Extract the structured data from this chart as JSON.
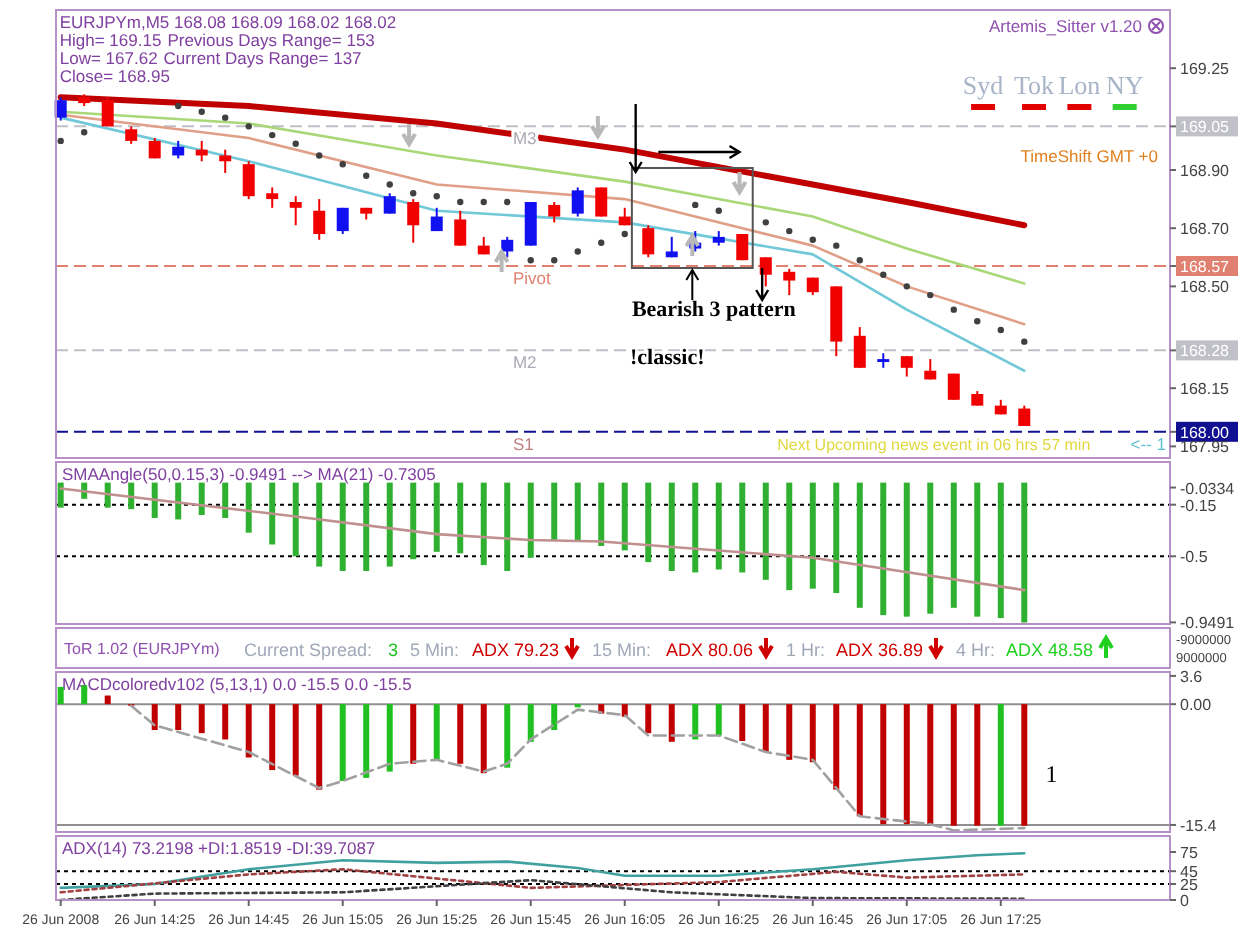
{
  "chart_data": [
    {
      "type": "candlestick",
      "xlim": [
        "2008-06-26T14:04",
        "2008-06-26T18:01"
      ],
      "ylim": [
        167.91,
        169.45
      ],
      "tick_labels": "y",
      "x": [
        "2008-06-26T14:05",
        "2008-06-26T14:10",
        "2008-06-26T14:15",
        "2008-06-26T14:20",
        "2008-06-26T14:25",
        "2008-06-26T14:30",
        "2008-06-26T14:35",
        "2008-06-26T14:40",
        "2008-06-26T14:45",
        "2008-06-26T14:50",
        "2008-06-26T14:55",
        "2008-06-26T15:00",
        "2008-06-26T15:05",
        "2008-06-26T15:10",
        "2008-06-26T15:15",
        "2008-06-26T15:20",
        "2008-06-26T15:25",
        "2008-06-26T15:30",
        "2008-06-26T15:35",
        "2008-06-26T15:40",
        "2008-06-26T15:45",
        "2008-06-26T15:50",
        "2008-06-26T15:55",
        "2008-06-26T16:00",
        "2008-06-26T16:05",
        "2008-06-26T16:10",
        "2008-06-26T16:15",
        "2008-06-26T16:20",
        "2008-06-26T16:25",
        "2008-06-26T16:30",
        "2008-06-26T16:35",
        "2008-06-26T16:40",
        "2008-06-26T16:45",
        "2008-06-26T16:50",
        "2008-06-26T16:55",
        "2008-06-26T17:00",
        "2008-06-26T17:05",
        "2008-06-26T17:10",
        "2008-06-26T17:15",
        "2008-06-26T17:20",
        "2008-06-26T17:25",
        "2008-06-26T17:30"
      ],
      "yticks": [
        169.25,
        {
          "value": 169.05,
          "label": "169.05"
        },
        {
          "value": 168.9,
          "label": "168.90"
        },
        {
          "value": 168.7,
          "label": "168.70"
        },
        168.57,
        {
          "value": 168.5,
          "label": "168.50"
        },
        168.28,
        168.15,
        {
          "value": 168.0,
          "label": "168.00"
        },
        167.95
      ],
      "ohlc": [
        [
          169.08,
          169.15,
          169.07,
          169.14
        ],
        [
          169.15,
          169.16,
          169.12,
          169.13
        ],
        [
          169.14,
          169.15,
          169.05,
          169.05
        ],
        [
          169.04,
          169.05,
          168.99,
          169.0
        ],
        [
          169.0,
          169.01,
          168.94,
          168.94
        ],
        [
          168.95,
          169.0,
          168.94,
          168.98
        ],
        [
          168.97,
          169.0,
          168.93,
          168.95
        ],
        [
          168.95,
          168.97,
          168.89,
          168.93
        ],
        [
          168.92,
          168.93,
          168.8,
          168.81
        ],
        [
          168.82,
          168.84,
          168.77,
          168.8
        ],
        [
          168.79,
          168.81,
          168.71,
          168.77
        ],
        [
          168.76,
          168.8,
          168.66,
          168.68
        ],
        [
          168.69,
          168.77,
          168.68,
          168.77
        ],
        [
          168.77,
          168.77,
          168.73,
          168.75
        ],
        [
          168.75,
          168.82,
          168.75,
          168.81
        ],
        [
          168.79,
          168.8,
          168.65,
          168.71
        ],
        [
          168.69,
          168.77,
          168.69,
          168.74
        ],
        [
          168.73,
          168.76,
          168.64,
          168.64
        ],
        [
          168.64,
          168.67,
          168.61,
          168.61
        ],
        [
          168.62,
          168.67,
          168.6,
          168.66
        ],
        [
          168.64,
          168.79,
          168.64,
          168.79
        ],
        [
          168.78,
          168.79,
          168.72,
          168.74
        ],
        [
          168.75,
          168.84,
          168.74,
          168.83
        ],
        [
          168.84,
          168.84,
          168.74,
          168.74
        ],
        [
          168.74,
          168.77,
          168.71,
          168.71
        ],
        [
          168.7,
          168.71,
          168.6,
          168.61
        ],
        [
          168.6,
          168.67,
          168.6,
          168.62
        ],
        [
          168.63,
          168.69,
          168.62,
          168.65
        ],
        [
          168.65,
          168.69,
          168.64,
          168.67
        ],
        [
          168.68,
          168.68,
          168.59,
          168.59
        ],
        [
          168.6,
          168.6,
          168.5,
          168.54
        ],
        [
          168.55,
          168.56,
          168.47,
          168.52
        ],
        [
          168.53,
          168.53,
          168.47,
          168.48
        ],
        [
          168.5,
          168.5,
          168.26,
          168.31
        ],
        [
          168.33,
          168.36,
          168.22,
          168.22
        ],
        [
          168.24,
          168.27,
          168.22,
          168.25
        ],
        [
          168.26,
          168.26,
          168.19,
          168.22
        ],
        [
          168.21,
          168.25,
          168.18,
          168.18
        ],
        [
          168.2,
          168.2,
          168.11,
          168.11
        ],
        [
          168.13,
          168.14,
          168.09,
          168.09
        ],
        [
          168.09,
          168.11,
          168.06,
          168.06
        ],
        [
          168.08,
          168.09,
          168.02,
          168.02
        ]
      ],
      "colors": [
        "#1010f0",
        "#f00000",
        "#f00000",
        "#f00000",
        "#f00000",
        "#1010f0",
        "#f00000",
        "#f00000",
        "#f00000",
        "#f00000",
        "#f00000",
        "#f00000",
        "#1010f0",
        "#f00000",
        "#1010f0",
        "#f00000",
        "#1010f0",
        "#f00000",
        "#f00000",
        "#1010f0",
        "#1010f0",
        "#f00000",
        "#1010f0",
        "#f00000",
        "#f00000",
        "#f00000",
        "#1010f0",
        "#1010f0",
        "#1010f0",
        "#f00000",
        "#f00000",
        "#f00000",
        "#f00000",
        "#f00000",
        "#f00000",
        "#1010f0",
        "#f00000",
        "#f00000",
        "#f00000",
        "#f00000",
        "#f00000",
        "#f00000"
      ],
      "series": [
        {
          "type": "line",
          "color": "#c00000",
          "x": [
            "2008-06-26T14:05",
            "2008-06-26T14:45",
            "2008-06-26T15:25",
            "2008-06-26T16:05",
            "2008-06-26T16:45",
            "2008-06-26T17:05",
            "2008-06-26T17:30"
          ],
          "values": [
            169.15,
            169.12,
            169.06,
            168.97,
            168.85,
            168.79,
            168.71
          ]
        },
        {
          "type": "line",
          "color": "#a8d878",
          "x": [
            "2008-06-26T14:05",
            "2008-06-26T14:45",
            "2008-06-26T15:25",
            "2008-06-26T16:05",
            "2008-06-26T16:45",
            "2008-06-26T17:05",
            "2008-06-26T17:30"
          ],
          "values": [
            169.1,
            169.06,
            168.95,
            168.86,
            168.74,
            168.63,
            168.51
          ]
        },
        {
          "type": "line",
          "color": "#e0a088",
          "x": [
            "2008-06-26T14:05",
            "2008-06-26T14:45",
            "2008-06-26T15:25",
            "2008-06-26T16:05",
            "2008-06-26T16:45",
            "2008-06-26T17:05",
            "2008-06-26T17:30"
          ],
          "values": [
            169.09,
            169.01,
            168.85,
            168.8,
            168.64,
            168.5,
            168.37
          ]
        },
        {
          "type": "line",
          "color": "#70c8d8",
          "x": [
            "2008-06-26T14:05",
            "2008-06-26T14:45",
            "2008-06-26T15:25",
            "2008-06-26T16:05",
            "2008-06-26T16:45",
            "2008-06-26T17:05",
            "2008-06-26T17:30"
          ],
          "values": [
            169.08,
            168.93,
            168.76,
            168.72,
            168.61,
            168.42,
            168.21
          ]
        },
        {
          "type": "scatter",
          "color": "#404040",
          "marker": "circle",
          "x": [
            "2008-06-26T14:05",
            "2008-06-26T14:10",
            "2008-06-26T14:30",
            "2008-06-26T14:35",
            "2008-06-26T14:40",
            "2008-06-26T14:45",
            "2008-06-26T14:50",
            "2008-06-26T14:55",
            "2008-06-26T15:00",
            "2008-06-26T15:05",
            "2008-06-26T15:10",
            "2008-06-26T15:15",
            "2008-06-26T15:20",
            "2008-06-26T15:25",
            "2008-06-26T15:30",
            "2008-06-26T15:35",
            "2008-06-26T15:40",
            "2008-06-26T15:45",
            "2008-06-26T15:50",
            "2008-06-26T15:55",
            "2008-06-26T16:00",
            "2008-06-26T16:05",
            "2008-06-26T16:20",
            "2008-06-26T16:25",
            "2008-06-26T16:35",
            "2008-06-26T16:40",
            "2008-06-26T16:45",
            "2008-06-26T16:50",
            "2008-06-26T16:55",
            "2008-06-26T17:00",
            "2008-06-26T17:05",
            "2008-06-26T17:10",
            "2008-06-26T17:15",
            "2008-06-26T17:20",
            "2008-06-26T17:25",
            "2008-06-26T17:30"
          ],
          "values": [
            169.0,
            169.03,
            169.12,
            169.1,
            169.08,
            169.05,
            169.02,
            168.99,
            168.95,
            168.92,
            168.88,
            168.85,
            168.82,
            168.81,
            168.79,
            168.79,
            168.79,
            168.59,
            168.59,
            168.62,
            168.65,
            168.68,
            168.78,
            168.76,
            168.72,
            168.69,
            168.66,
            168.64,
            168.59,
            168.54,
            168.5,
            168.47,
            168.42,
            168.38,
            168.35,
            168.31
          ]
        }
      ],
      "ref_lines": [
        {
          "axis": "y",
          "value": 169.05,
          "label": "M3",
          "color": "#c0c0c8",
          "line_style": "dashed"
        },
        {
          "axis": "y",
          "value": 168.57,
          "label": "Pivot",
          "color": "#e08070",
          "line_style": "dashed"
        },
        {
          "axis": "y",
          "value": 168.28,
          "label": "M2",
          "color": "#c0c0c8",
          "line_style": "dashed"
        },
        {
          "axis": "y",
          "value": 168.0,
          "label": "S1",
          "color": "#101090",
          "line_style": "dashed"
        }
      ],
      "annotations": [
        "EURJPYm,M5  168.08 168.09 168.02 168.02",
        "High= 169.15",
        "Previous Days Range= 153",
        "Low= 167.62",
        "Current Days Range= 137",
        "Close= 168.95",
        "Artemis_Sitter v1.20",
        "TimeShift GMT +0",
        "Syd",
        "Tok",
        "Lon",
        "NY",
        "Bearish 3 pattern",
        "!classic!",
        "Next Upcoming news event in 06 hrs 57 min",
        "<-- 1"
      ]
    },
    {
      "type": "bar",
      "title": "SMAAngle(50,0.15,3) -0.9491 --> MA(21) -0.7305",
      "xlim": [
        "2008-06-26T14:04",
        "2008-06-26T18:01"
      ],
      "ylim": [
        -0.96,
        0.14
      ],
      "tick_labels": "y",
      "x": [
        "2008-06-26T14:05",
        "2008-06-26T14:10",
        "2008-06-26T14:15",
        "2008-06-26T14:20",
        "2008-06-26T14:25",
        "2008-06-26T14:30",
        "2008-06-26T14:35",
        "2008-06-26T14:40",
        "2008-06-26T14:45",
        "2008-06-26T14:50",
        "2008-06-26T14:55",
        "2008-06-26T15:00",
        "2008-06-26T15:05",
        "2008-06-26T15:10",
        "2008-06-26T15:15",
        "2008-06-26T15:20",
        "2008-06-26T15:25",
        "2008-06-26T15:30",
        "2008-06-26T15:35",
        "2008-06-26T15:40",
        "2008-06-26T15:45",
        "2008-06-26T15:50",
        "2008-06-26T15:55",
        "2008-06-26T16:00",
        "2008-06-26T16:05",
        "2008-06-26T16:10",
        "2008-06-26T16:15",
        "2008-06-26T16:20",
        "2008-06-26T16:25",
        "2008-06-26T16:30",
        "2008-06-26T16:35",
        "2008-06-26T16:40",
        "2008-06-26T16:45",
        "2008-06-26T16:50",
        "2008-06-26T16:55",
        "2008-06-26T17:00",
        "2008-06-26T17:05",
        "2008-06-26T17:10",
        "2008-06-26T17:15",
        "2008-06-26T17:20",
        "2008-06-26T17:25",
        "2008-06-26T17:30"
      ],
      "yticks": [
        -0.0334,
        -0.15,
        -0.5,
        -0.9491
      ],
      "series": [
        {
          "type": "bar",
          "color": "#30b030",
          "values": [
            -0.17,
            -0.11,
            -0.17,
            -0.18,
            -0.24,
            -0.25,
            -0.22,
            -0.24,
            -0.34,
            -0.42,
            -0.5,
            -0.57,
            -0.6,
            -0.6,
            -0.57,
            -0.52,
            -0.47,
            -0.48,
            -0.56,
            -0.6,
            -0.51,
            -0.39,
            -0.39,
            -0.43,
            -0.46,
            -0.54,
            -0.6,
            -0.61,
            -0.59,
            -0.61,
            -0.66,
            -0.73,
            -0.72,
            -0.75,
            -0.85,
            -0.9,
            -0.91,
            -0.89,
            -0.85,
            -0.91,
            -0.92,
            -0.95
          ]
        },
        {
          "type": "line",
          "color": "#c09090",
          "x": [
            "2008-06-26T14:05",
            "2008-06-26T14:55",
            "2008-06-26T15:25",
            "2008-06-26T15:45",
            "2008-06-26T16:00",
            "2008-06-26T16:45",
            "2008-06-26T17:30"
          ],
          "values": [
            -0.04,
            -0.23,
            -0.35,
            -0.39,
            -0.4,
            -0.51,
            -0.73
          ]
        }
      ],
      "ref_lines": [
        {
          "axis": "y",
          "value": -0.15,
          "color": "#000000",
          "line_style": "dotted"
        },
        {
          "axis": "y",
          "value": -0.5,
          "color": "#000000",
          "line_style": "dotted"
        }
      ]
    },
    {
      "type": "other",
      "annotations": [
        "ToR 1.02 (EURJPYm)",
        "Current Spread:",
        "3",
        "5 Min:",
        "ADX 79.23",
        "15 Min:",
        "ADX 80.06",
        "1 Hr:",
        "ADX 36.89",
        "4 Hr:",
        "ADX 48.58",
        "-9000000",
        "9000000"
      ]
    },
    {
      "type": "bar",
      "title": "MACDcoloredv102 (5,13,1) 0.0 -15.5 0.0 -15.5",
      "xlim": [
        "2008-06-26T14:04",
        "2008-06-26T18:01"
      ],
      "ylim": [
        -16.3,
        4.1
      ],
      "tick_labels": "y",
      "x": [
        "2008-06-26T14:05",
        "2008-06-26T14:10",
        "2008-06-26T14:15",
        "2008-06-26T14:20",
        "2008-06-26T14:25",
        "2008-06-26T14:30",
        "2008-06-26T14:35",
        "2008-06-26T14:40",
        "2008-06-26T14:45",
        "2008-06-26T14:50",
        "2008-06-26T14:55",
        "2008-06-26T15:00",
        "2008-06-26T15:05",
        "2008-06-26T15:10",
        "2008-06-26T15:15",
        "2008-06-26T15:20",
        "2008-06-26T15:25",
        "2008-06-26T15:30",
        "2008-06-26T15:35",
        "2008-06-26T15:40",
        "2008-06-26T15:45",
        "2008-06-26T15:50",
        "2008-06-26T15:55",
        "2008-06-26T16:00",
        "2008-06-26T16:05",
        "2008-06-26T16:10",
        "2008-06-26T16:15",
        "2008-06-26T16:20",
        "2008-06-26T16:25",
        "2008-06-26T16:30",
        "2008-06-26T16:35",
        "2008-06-26T16:40",
        "2008-06-26T16:45",
        "2008-06-26T16:50",
        "2008-06-26T16:55",
        "2008-06-26T17:00",
        "2008-06-26T17:05",
        "2008-06-26T17:10",
        "2008-06-26T17:15",
        "2008-06-26T17:20",
        "2008-06-26T17:25",
        "2008-06-26T17:30"
      ],
      "yticks": [
        3.6,
        {
          "value": 0,
          "label": "0.00"
        },
        -15.4
      ],
      "series": [
        {
          "type": "bar",
          "values": [
            2.2,
            2.4,
            1.1,
            -0.2,
            -3.3,
            -3.3,
            -3.7,
            -4.5,
            -6.8,
            -8.4,
            -9.1,
            -10.9,
            -9.8,
            -9.4,
            -8.6,
            -7.6,
            -7.1,
            -7.6,
            -8.8,
            -8.1,
            -4.8,
            -3.3,
            -0.4,
            -1.2,
            -1.6,
            -3.7,
            -4.8,
            -4.5,
            -4.0,
            -4.7,
            -6.1,
            -7.1,
            -7.4,
            -10.9,
            -14.3,
            -15.3,
            -15.3,
            -15.3,
            -15.5,
            -15.5,
            -15.5,
            -15.5
          ],
          "colors": [
            "#20c020",
            "#20c020",
            "#c00000",
            "#c00000",
            "#c00000",
            "#c00000",
            "#c00000",
            "#c00000",
            "#c00000",
            "#c00000",
            "#c00000",
            "#c00000",
            "#20c020",
            "#20c020",
            "#20c020",
            "#c00000",
            "#20c020",
            "#c00000",
            "#c00000",
            "#20c020",
            "#20c020",
            "#20c020",
            "#20c020",
            "#c00000",
            "#c00000",
            "#c00000",
            "#c00000",
            "#20c020",
            "#20c020",
            "#c00000",
            "#c00000",
            "#c00000",
            "#c00000",
            "#c00000",
            "#c00000",
            "#c00000",
            "#c00000",
            "#c00000",
            "#c00000",
            "#c00000",
            "#20c020",
            "#c00000"
          ]
        },
        {
          "type": "line",
          "color": "#a0a0a0",
          "line_style": "dashed",
          "x": [
            "2008-06-26T14:20",
            "2008-06-26T14:25",
            "2008-06-26T14:45",
            "2008-06-26T15:00",
            "2008-06-26T15:05",
            "2008-06-26T15:15",
            "2008-06-26T15:25",
            "2008-06-26T15:35",
            "2008-06-26T15:40",
            "2008-06-26T15:45",
            "2008-06-26T15:55",
            "2008-06-26T16:05",
            "2008-06-26T16:10",
            "2008-06-26T16:25",
            "2008-06-26T16:35",
            "2008-06-26T16:45",
            "2008-06-26T16:55",
            "2008-06-26T17:10",
            "2008-06-26T17:15",
            "2008-06-26T17:30"
          ],
          "values": [
            -0.2,
            -2.7,
            -6.1,
            -10.7,
            -9.8,
            -7.6,
            -7.1,
            -8.6,
            -7.6,
            -4.5,
            -0.7,
            -1.4,
            -4.0,
            -4.0,
            -6.1,
            -7.1,
            -14.3,
            -15.3,
            -16.1,
            -15.8
          ]
        }
      ],
      "ref_lines": [
        {
          "axis": "y",
          "value": 0,
          "color": "#909090",
          "line_style": "solid"
        },
        {
          "axis": "y",
          "value": -15.4,
          "color": "#909090",
          "line_style": "solid"
        }
      ],
      "annotations": [
        "1"
      ]
    },
    {
      "type": "line",
      "title": "ADX(14) 73.2198 +DI:1.8519 -DI:39.7087",
      "xlim": [
        "2008-06-26T14:04",
        "2008-06-26T18:01"
      ],
      "ylim": [
        0,
        100
      ],
      "yticks": [
        75,
        45,
        25,
        0
      ],
      "xticks": [
        {
          "value": "2008-06-26T14:05",
          "label": "26 Jun 2008"
        },
        {
          "value": "2008-06-26T14:25",
          "label": "26 Jun 14:25"
        },
        {
          "value": "2008-06-26T14:45",
          "label": "26 Jun 14:45"
        },
        {
          "value": "2008-06-26T15:05",
          "label": "26 Jun 15:05"
        },
        {
          "value": "2008-06-26T15:25",
          "label": "26 Jun 15:25"
        },
        {
          "value": "2008-06-26T15:45",
          "label": "26 Jun 15:45"
        },
        {
          "value": "2008-06-26T16:05",
          "label": "26 Jun 16:05"
        },
        {
          "value": "2008-06-26T16:25",
          "label": "26 Jun 16:25"
        },
        {
          "value": "2008-06-26T16:45",
          "label": "26 Jun 16:45"
        },
        {
          "value": "2008-06-26T17:05",
          "label": "26 Jun 17:05"
        },
        {
          "value": "2008-06-26T17:25",
          "label": "26 Jun 17:25"
        }
      ],
      "series": [
        {
          "color": "#40a0a0",
          "x": [
            "2008-06-26T14:05",
            "2008-06-26T14:25",
            "2008-06-26T14:45",
            "2008-06-26T15:05",
            "2008-06-26T15:25",
            "2008-06-26T15:40",
            "2008-06-26T15:55",
            "2008-06-26T16:05",
            "2008-06-26T16:25",
            "2008-06-26T16:45",
            "2008-06-26T17:05",
            "2008-06-26T17:20",
            "2008-06-26T17:30"
          ],
          "values": [
            19,
            25,
            48,
            62,
            58,
            60,
            50,
            38,
            38,
            48,
            62,
            70,
            73
          ]
        },
        {
          "color": "#a04040",
          "line_style": "dotted",
          "x": [
            "2008-06-26T14:05",
            "2008-06-26T14:45",
            "2008-06-26T15:05",
            "2008-06-26T15:45",
            "2008-06-26T16:25",
            "2008-06-26T16:50",
            "2008-06-26T17:05",
            "2008-06-26T17:30"
          ],
          "values": [
            12,
            40,
            48,
            19,
            28,
            44,
            35,
            40
          ]
        },
        {
          "color": "#404040",
          "line_style": "dotted",
          "x": [
            "2008-06-26T14:05",
            "2008-06-26T14:25",
            "2008-06-26T15:05",
            "2008-06-26T15:45",
            "2008-06-26T16:15",
            "2008-06-26T16:45",
            "2008-06-26T17:30"
          ],
          "values": [
            0,
            10,
            12,
            31,
            12,
            3,
            2
          ]
        }
      ],
      "ref_lines": [
        {
          "axis": "y",
          "value": 45,
          "color": "#000000",
          "line_style": "dotted"
        },
        {
          "axis": "y",
          "value": 25,
          "color": "#000000",
          "line_style": "dotted"
        }
      ]
    }
  ]
}
